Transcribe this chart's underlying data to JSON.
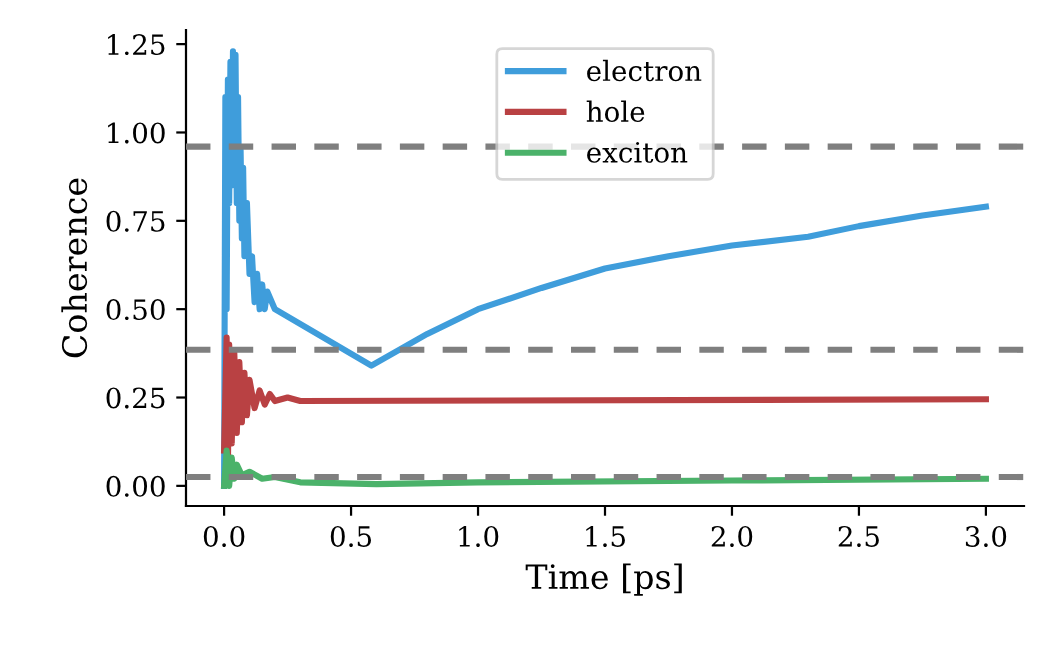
{
  "chart_data": {
    "type": "line",
    "xlabel": "Time [ps]",
    "ylabel": "Coherence",
    "xlim": [
      -0.15,
      3.15
    ],
    "ylim": [
      -0.057,
      1.29
    ],
    "xticks": [
      {
        "value": 0,
        "label": "0.0"
      },
      {
        "value": 0.5,
        "label": "0.5"
      },
      {
        "value": 1,
        "label": "1.0"
      },
      {
        "value": 1.5,
        "label": "1.5"
      },
      {
        "value": 2,
        "label": "2.0"
      },
      {
        "value": 2.5,
        "label": "2.5"
      },
      {
        "value": 3,
        "label": "3.0"
      }
    ],
    "yticks": [
      {
        "value": 0,
        "label": "0.00"
      },
      {
        "value": 0.25,
        "label": "0.25"
      },
      {
        "value": 0.5,
        "label": "0.50"
      },
      {
        "value": 0.75,
        "label": "0.75"
      },
      {
        "value": 1,
        "label": "1.00"
      },
      {
        "value": 1.25,
        "label": "1.25"
      }
    ],
    "grid": false,
    "legend": "top",
    "marker": "none",
    "line_style": "solid",
    "series": [
      {
        "name": "electron",
        "color": "#3f9ddb",
        "x": [
          0,
          0.005,
          0.01,
          0.015,
          0.02,
          0.025,
          0.03,
          0.035,
          0.04,
          0.045,
          0.05,
          0.055,
          0.06,
          0.065,
          0.07,
          0.075,
          0.08,
          0.09,
          0.1,
          0.11,
          0.12,
          0.13,
          0.14,
          0.15,
          0.16,
          0.17,
          0.2,
          0.58,
          0.8,
          1.0,
          1.25,
          1.5,
          1.75,
          2.0,
          2.3,
          2.5,
          2.75,
          3.0
        ],
        "values": [
          0,
          1.1,
          0.5,
          1.15,
          0.8,
          1.2,
          0.85,
          1.23,
          0.9,
          1.22,
          0.8,
          1.1,
          0.75,
          0.95,
          0.7,
          0.9,
          0.65,
          0.8,
          0.6,
          0.65,
          0.52,
          0.6,
          0.5,
          0.57,
          0.5,
          0.55,
          0.5,
          0.34,
          0.43,
          0.5,
          0.56,
          0.615,
          0.65,
          0.68,
          0.705,
          0.735,
          0.765,
          0.79
        ]
      },
      {
        "name": "hole",
        "color": "#b94143",
        "x": [
          0,
          0.01,
          0.015,
          0.02,
          0.03,
          0.04,
          0.05,
          0.06,
          0.07,
          0.08,
          0.09,
          0.1,
          0.12,
          0.14,
          0.16,
          0.18,
          0.2,
          0.25,
          0.3,
          3.0
        ],
        "values": [
          0.1,
          0.42,
          0.05,
          0.4,
          0.12,
          0.38,
          0.15,
          0.35,
          0.18,
          0.32,
          0.2,
          0.3,
          0.22,
          0.27,
          0.23,
          0.26,
          0.24,
          0.25,
          0.24,
          0.245
        ]
      },
      {
        "name": "exciton",
        "color": "#4bb26a",
        "x": [
          0,
          0.01,
          0.02,
          0.03,
          0.04,
          0.05,
          0.07,
          0.1,
          0.15,
          0.2,
          0.3,
          0.6,
          1.0,
          2.0,
          3.0
        ],
        "values": [
          0,
          0.1,
          0,
          0.08,
          0.02,
          0.06,
          0.03,
          0.04,
          0.02,
          0.025,
          0.01,
          0.005,
          0.01,
          0.015,
          0.02
        ]
      }
    ],
    "ref_lines": [
      {
        "axis": "y",
        "value": 0.96,
        "color": "#7f7f7f",
        "line_style": "dashed"
      },
      {
        "axis": "y",
        "value": 0.385,
        "color": "#7f7f7f",
        "line_style": "dashed"
      },
      {
        "axis": "y",
        "value": 0.025,
        "color": "#7f7f7f",
        "line_style": "dashed"
      }
    ]
  }
}
